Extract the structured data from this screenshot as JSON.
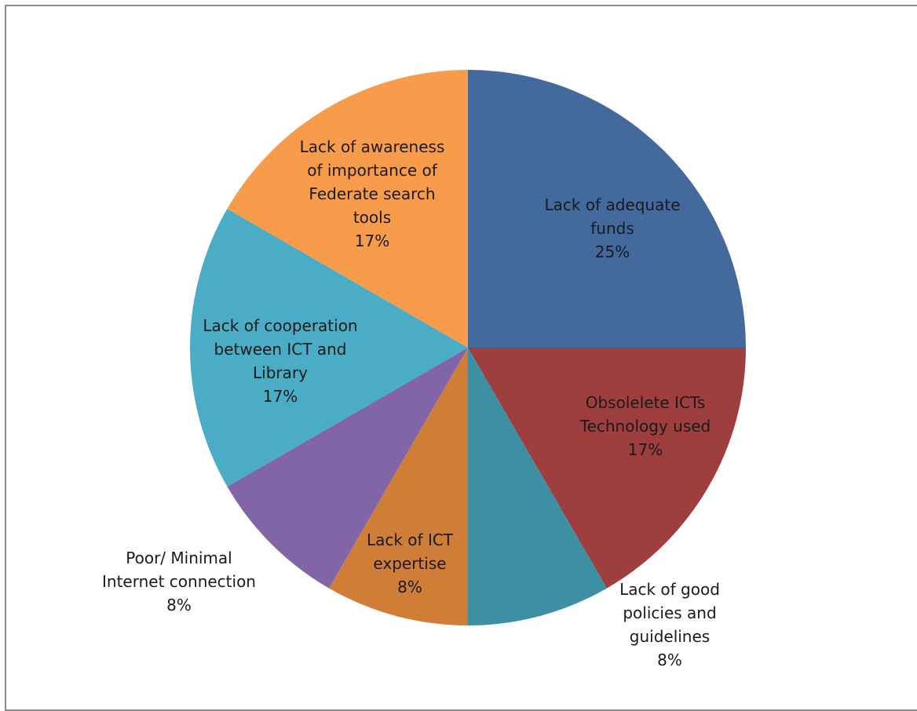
{
  "chart_data": {
    "type": "pie",
    "title": "",
    "slices": [
      {
        "label": [
          "Lack of adequate",
          "funds"
        ],
        "value": 25,
        "value_label": "25%",
        "color": "#44699c"
      },
      {
        "label": [
          "Obsolelete  ICTs",
          "Technology used"
        ],
        "value": 16.67,
        "value_label": "17%",
        "color": "#9f3e3f"
      },
      {
        "label": [
          "Lack of good",
          "policies and",
          "guidelines"
        ],
        "value": 8.33,
        "value_label": "8%",
        "color": "#3d8fa4"
      },
      {
        "label": [
          "Lack of ICT",
          "expertise"
        ],
        "value": 8.33,
        "value_label": "8%",
        "color": "#d07d38"
      },
      {
        "label": [
          "Poor/ Minimal",
          "Internet connection"
        ],
        "value": 8.33,
        "value_label": "8%",
        "color": "#8165a7"
      },
      {
        "label": [
          "Lack of cooperation",
          "between ICT and",
          "Library"
        ],
        "value": 16.67,
        "value_label": "17%",
        "color": "#4bacc6"
      },
      {
        "label": [
          "Lack of awareness",
          "of importance of",
          "Federate search",
          "tools"
        ],
        "value": 16.67,
        "value_label": "17%",
        "color": "#f79c4b"
      }
    ],
    "start_angle_deg": 0,
    "direction": "clockwise",
    "legend": "none",
    "data_labels": "category name and percentage"
  }
}
